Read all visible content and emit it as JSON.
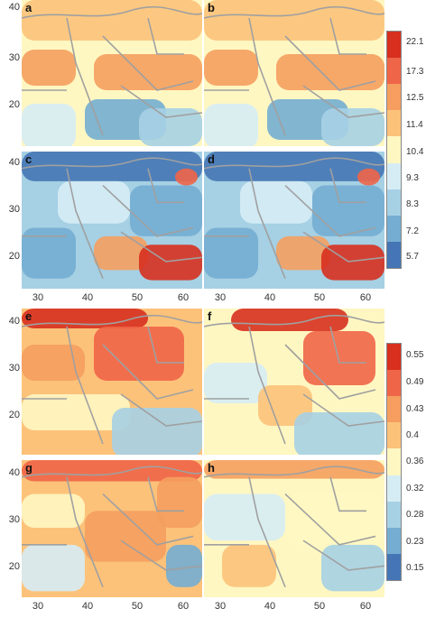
{
  "panels": [
    {
      "id": "a",
      "label": "a",
      "palette": "warm"
    },
    {
      "id": "b",
      "label": "b",
      "palette": "warm"
    },
    {
      "id": "c",
      "label": "c",
      "palette": "cool"
    },
    {
      "id": "d",
      "label": "d",
      "palette": "cool"
    },
    {
      "id": "e",
      "label": "e",
      "palette": "hot"
    },
    {
      "id": "f",
      "label": "f",
      "palette": "hot2"
    },
    {
      "id": "g",
      "label": "g",
      "palette": "mixed"
    },
    {
      "id": "h",
      "label": "h",
      "palette": "mixed2"
    }
  ],
  "y_ticks": [
    "40",
    "30",
    "20"
  ],
  "x_ticks": [
    "30",
    "40",
    "50",
    "60"
  ],
  "legend_top": {
    "labels": [
      "22.1",
      "17.3",
      "12.5",
      "11.4",
      "10.4",
      "9.3",
      "8.3",
      "7.2",
      "5.7"
    ]
  },
  "legend_bottom": {
    "labels": [
      "0.55",
      "0.49",
      "0.43",
      "0.4",
      "0.36",
      "0.32",
      "0.28",
      "0.23",
      "0.15"
    ]
  },
  "colors": [
    "#d7301f",
    "#ef6548",
    "#f59e5f",
    "#fcc27a",
    "#fff7c2",
    "#d6ecf5",
    "#a6d0e4",
    "#74add1",
    "#4575b4"
  ],
  "border_color": "#a0a0a0"
}
